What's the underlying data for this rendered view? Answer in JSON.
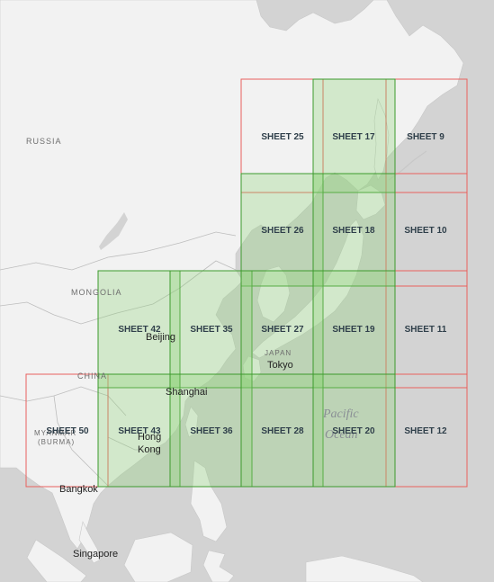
{
  "colors": {
    "sea": "#d3d3d3",
    "land": "#f2f2f2",
    "border": "#bdbdbd",
    "sheet_red": "#e8605d",
    "sheet_green_stroke": "#3c9a2c",
    "sheet_green_fill": "#8fd27a"
  },
  "country_labels": {
    "russia": "RUSSIA",
    "mongolia": "MONGOLIA",
    "china": "CHINA",
    "japan": "JAPAN",
    "myanmar": "MYANMAR",
    "burma": "(BURMA)"
  },
  "ocean_labels": {
    "line1": "Pacific",
    "line2": "Ocean"
  },
  "cities": {
    "beijing": "Beijing",
    "tokyo": "Tokyo",
    "shanghai": "Shanghai",
    "hong_kong_1": "Hong",
    "hong_kong_2": "Kong",
    "bangkok": "Bangkok",
    "singapore": "Singapore"
  },
  "sheets": [
    {
      "label": "SHEET 25",
      "status": "unavailable"
    },
    {
      "label": "SHEET 17",
      "status": "available"
    },
    {
      "label": "SHEET 9",
      "status": "unavailable"
    },
    {
      "label": "SHEET 26",
      "status": "available"
    },
    {
      "label": "SHEET 18",
      "status": "available"
    },
    {
      "label": "SHEET 10",
      "status": "unavailable"
    },
    {
      "label": "SHEET 42",
      "status": "available"
    },
    {
      "label": "SHEET 35",
      "status": "available"
    },
    {
      "label": "SHEET 27",
      "status": "available"
    },
    {
      "label": "SHEET 19",
      "status": "available"
    },
    {
      "label": "SHEET 11",
      "status": "unavailable"
    },
    {
      "label": "SHEET 50",
      "status": "unavailable"
    },
    {
      "label": "SHEET 43",
      "status": "available"
    },
    {
      "label": "SHEET 36",
      "status": "available"
    },
    {
      "label": "SHEET 28",
      "status": "available"
    },
    {
      "label": "SHEET 20",
      "status": "available"
    },
    {
      "label": "SHEET 12",
      "status": "unavailable"
    }
  ]
}
